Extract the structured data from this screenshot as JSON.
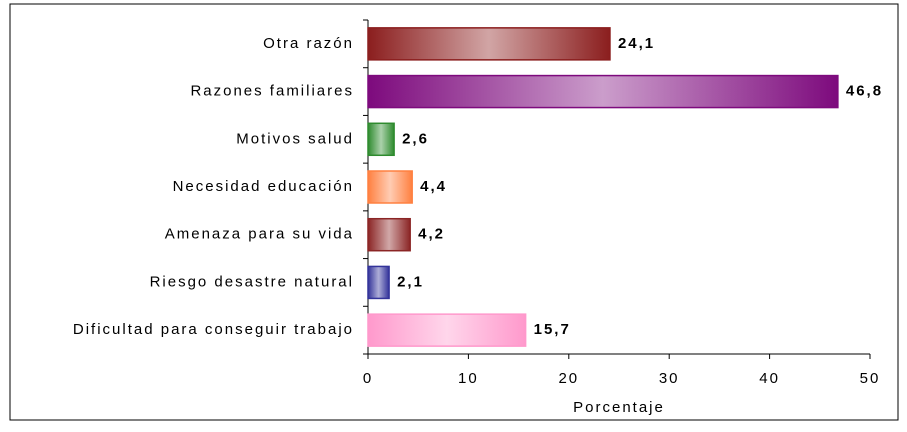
{
  "chart_data": {
    "type": "barh",
    "categories": [
      "Otra razón",
      "Razones familiares",
      "Motivos salud",
      "Necesidad educación",
      "Amenaza para su vida",
      "Riesgo desastre natural",
      "Dificultad para conseguir trabajo"
    ],
    "values": [
      24.1,
      46.8,
      2.6,
      4.4,
      4.2,
      2.1,
      15.7
    ],
    "value_labels": [
      "24,1",
      "46,8",
      "2,6",
      "4,4",
      "4,2",
      "2,1",
      "15,7"
    ],
    "colors": [
      "#8b1e1e",
      "#7d0a7d",
      "#2e8b2e",
      "#ff8040",
      "#8b2525",
      "#33339a",
      "#ff99cc"
    ],
    "xlabel": "Porcentaje",
    "xlim": [
      0,
      50
    ],
    "xticks": [
      0,
      10,
      20,
      30,
      40,
      50
    ]
  }
}
